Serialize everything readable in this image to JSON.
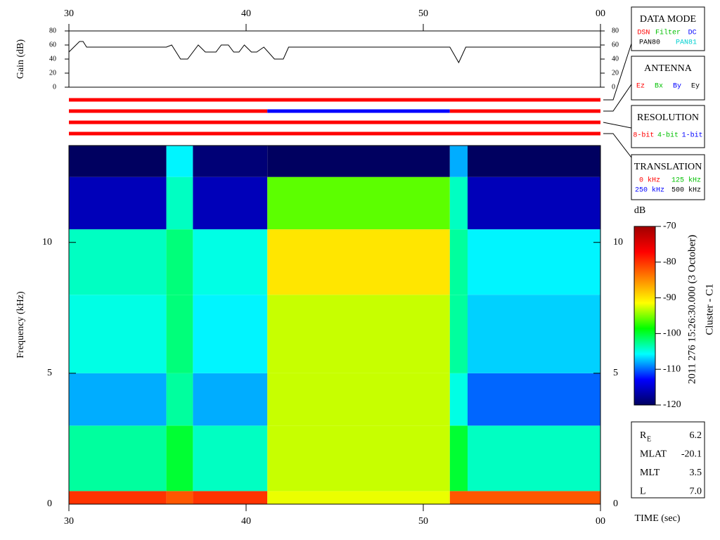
{
  "chart_data": [
    {
      "type": "line",
      "y_label": "Gain (dB)",
      "color": "#000000",
      "xlim": [
        30,
        60
      ],
      "xticks": [
        30,
        40,
        50,
        {
          "value": 60,
          "label": "00"
        }
      ],
      "ylim": [
        0,
        80
      ],
      "yticks": [
        0,
        20,
        40,
        60,
        80
      ],
      "x": [
        30,
        30.6,
        30.8,
        31,
        35.5,
        35.8,
        36.3,
        36.7,
        37.3,
        37.7,
        38.3,
        38.6,
        39,
        39.3,
        39.6,
        39.9,
        40.3,
        40.6,
        41,
        41.6,
        42.1,
        42.4,
        51.5,
        52,
        52.4,
        60
      ],
      "values": [
        50,
        65,
        65,
        57,
        57,
        60,
        40,
        40,
        60,
        50,
        50,
        60,
        60,
        50,
        50,
        60,
        50,
        50,
        57,
        40,
        40,
        57,
        57,
        35,
        57,
        57
      ]
    },
    {
      "type": "status",
      "xlim": [
        30,
        60
      ],
      "channels": [
        [
          {
            "start": 30,
            "end": 60,
            "color": "#ff0000"
          }
        ],
        [
          {
            "start": 30,
            "end": 41.2,
            "color": "#ff0000"
          },
          {
            "start": 41.2,
            "end": 51.5,
            "color": "#0000ff"
          },
          {
            "start": 51.5,
            "end": 60,
            "color": "#ff0000"
          }
        ],
        [
          {
            "start": 30,
            "end": 60,
            "color": "#ff0000"
          }
        ],
        [
          {
            "start": 30,
            "end": 60,
            "color": "#ff0000"
          }
        ]
      ]
    },
    {
      "type": "heatmap",
      "x_label": "TIME (sec)",
      "y_label": "Frequency (kHz)",
      "xlim": [
        30,
        60
      ],
      "xticks": [
        30,
        40,
        50,
        {
          "value": 60,
          "label": "00"
        }
      ],
      "ylim": [
        0,
        13.7
      ],
      "yticks": [
        0,
        5,
        10
      ],
      "x_edges": [
        30,
        35.5,
        37,
        41.2,
        51.5,
        52.5,
        60
      ],
      "y_edges": [
        0,
        0.5,
        3,
        5,
        8,
        10.5,
        12.5,
        13.7
      ],
      "values": [
        [
          -80,
          -82,
          -80,
          -92,
          -82,
          -82
        ],
        [
          -103,
          -100,
          -104,
          -93,
          -100,
          -104
        ],
        [
          -108,
          -103,
          -108,
          -93,
          -105,
          -110
        ],
        [
          -105,
          -102,
          -106,
          -93,
          -103,
          -107
        ],
        [
          -104,
          -102,
          -105,
          -90,
          -103,
          -106
        ],
        [
          -116,
          -104,
          -116,
          -96,
          -104,
          -116
        ],
        [
          -120,
          -106,
          -119,
          -120,
          -108,
          -120
        ]
      ],
      "colorbar": {
        "label": "dB",
        "lim": [
          -120,
          -70
        ],
        "ticks": [
          -70,
          -80,
          -90,
          -100,
          -110,
          -120
        ],
        "colormap": [
          "#000060",
          "#0000ff",
          "#00ffff",
          "#00ff00",
          "#ffff00",
          "#ff8000",
          "#ff0000",
          "#a00000"
        ]
      }
    }
  ],
  "panels": [
    {
      "title": "DATA MODE",
      "rows": [
        [
          {
            "text": "DSN",
            "color": "#ff0000"
          },
          {
            "text": "Filter",
            "color": "#00c000"
          },
          {
            "text": "DC",
            "color": "#0000ff"
          }
        ],
        [
          {
            "text": "PAN80",
            "color": "#000000"
          },
          {
            "text": "PAN81",
            "color": "#00d0d0"
          }
        ]
      ]
    },
    {
      "title": "ANTENNA",
      "rows": [
        [
          {
            "text": "Ez",
            "color": "#ff0000"
          },
          {
            "text": "Bx",
            "color": "#00c000"
          },
          {
            "text": "By",
            "color": "#0000ff"
          },
          {
            "text": "Ey",
            "color": "#000000"
          }
        ]
      ]
    },
    {
      "title": "RESOLUTION",
      "rows": [
        [
          {
            "text": "8-bit",
            "color": "#ff0000"
          },
          {
            "text": "4-bit",
            "color": "#00c000"
          },
          {
            "text": "1-bit",
            "color": "#0000ff"
          }
        ]
      ]
    },
    {
      "title": "TRANSLATION",
      "rows": [
        [
          {
            "text": "0 kHz",
            "color": "#ff0000"
          },
          {
            "text": "125 kHz",
            "color": "#00c000"
          }
        ],
        [
          {
            "text": "250 kHz",
            "color": "#0000ff"
          },
          {
            "text": "500 kHz",
            "color": "#000000"
          }
        ]
      ]
    }
  ],
  "ephemeris": [
    {
      "label": "R",
      "sub": "E",
      "value": "6.2"
    },
    {
      "label": "MLAT",
      "value": "-20.1"
    },
    {
      "label": "MLT",
      "value": "3.5"
    },
    {
      "label": "L",
      "value": "7.0"
    }
  ],
  "date_label": "2011 276 15:26:30.000 (3 October)",
  "spacecraft": "Cluster - C1"
}
